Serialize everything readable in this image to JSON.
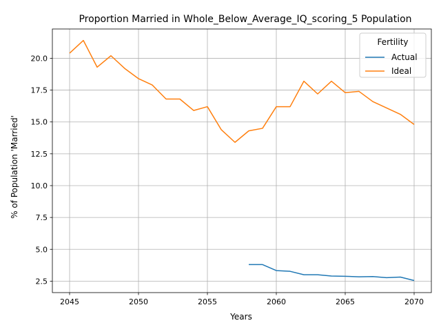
{
  "chart_data": {
    "type": "line",
    "title": "Proportion Married in Whole_Below_Average_IQ_scoring_5 Population",
    "xlabel": "Years",
    "ylabel": "% of Population 'Married'",
    "xlim": [
      2043.75,
      2071.25
    ],
    "ylim": [
      1.6,
      22.3
    ],
    "x_ticks": [
      2045,
      2050,
      2055,
      2060,
      2065,
      2070
    ],
    "y_ticks": [
      2.5,
      5.0,
      7.5,
      10.0,
      12.5,
      15.0,
      17.5,
      20.0
    ],
    "x_tick_labels": [
      "2045",
      "2050",
      "2055",
      "2060",
      "2065",
      "2070"
    ],
    "y_tick_labels": [
      "2.5",
      "5.0",
      "7.5",
      "10.0",
      "12.5",
      "15.0",
      "17.5",
      "20.0"
    ],
    "grid": true,
    "legend": {
      "title": "Fertility",
      "placement": "upper-right"
    },
    "series": [
      {
        "name": "Actual",
        "color": "#1f77b4",
        "x": [
          2058,
          2059,
          2060,
          2061,
          2062,
          2063,
          2064,
          2065,
          2066,
          2067,
          2068,
          2069,
          2070
        ],
        "y": [
          3.8,
          3.8,
          3.33,
          3.27,
          3.0,
          3.0,
          2.9,
          2.88,
          2.84,
          2.86,
          2.77,
          2.82,
          2.55
        ]
      },
      {
        "name": "Ideal",
        "color": "#ff7f0e",
        "x": [
          2045,
          2046,
          2047,
          2048,
          2049,
          2050,
          2051,
          2052,
          2053,
          2054,
          2055,
          2056,
          2057,
          2058,
          2059,
          2060,
          2061,
          2062,
          2063,
          2064,
          2065,
          2066,
          2067,
          2068,
          2069,
          2070
        ],
        "y": [
          20.4,
          21.4,
          19.3,
          20.2,
          19.2,
          18.4,
          17.9,
          16.8,
          16.8,
          15.9,
          16.2,
          14.4,
          13.4,
          14.3,
          14.5,
          16.2,
          16.2,
          18.2,
          17.2,
          18.2,
          17.3,
          17.4,
          16.6,
          16.1,
          15.6,
          14.8
        ]
      }
    ]
  }
}
